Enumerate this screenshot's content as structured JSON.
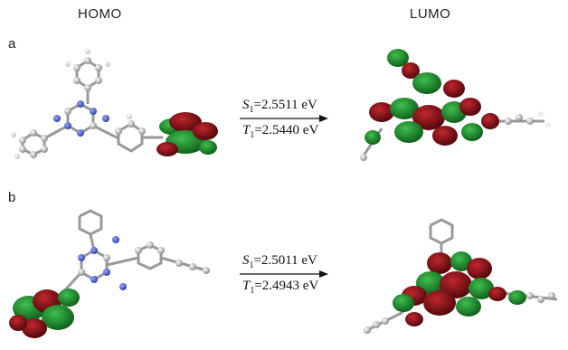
{
  "headers": {
    "left": "HOMO",
    "right": "LUMO"
  },
  "panels": [
    {
      "label": "a",
      "s1": {
        "symbol": "S",
        "sub": "1",
        "value": "=2.5511 eV"
      },
      "t1": {
        "symbol": "T",
        "sub": "1",
        "value": "=2.5440 eV"
      }
    },
    {
      "label": "b",
      "s1": {
        "symbol": "S",
        "sub": "1",
        "value": "=2.5011 eV"
      },
      "t1": {
        "symbol": "T",
        "sub": "1",
        "value": "=2.4943 eV"
      }
    }
  ],
  "colors": {
    "orbital_positive": "#1a8a2a",
    "orbital_negative": "#8b0e12",
    "nitrogen": "#3b4fc0",
    "carbon": "#a8a8a8",
    "hydrogen": "#f2f2f2"
  }
}
